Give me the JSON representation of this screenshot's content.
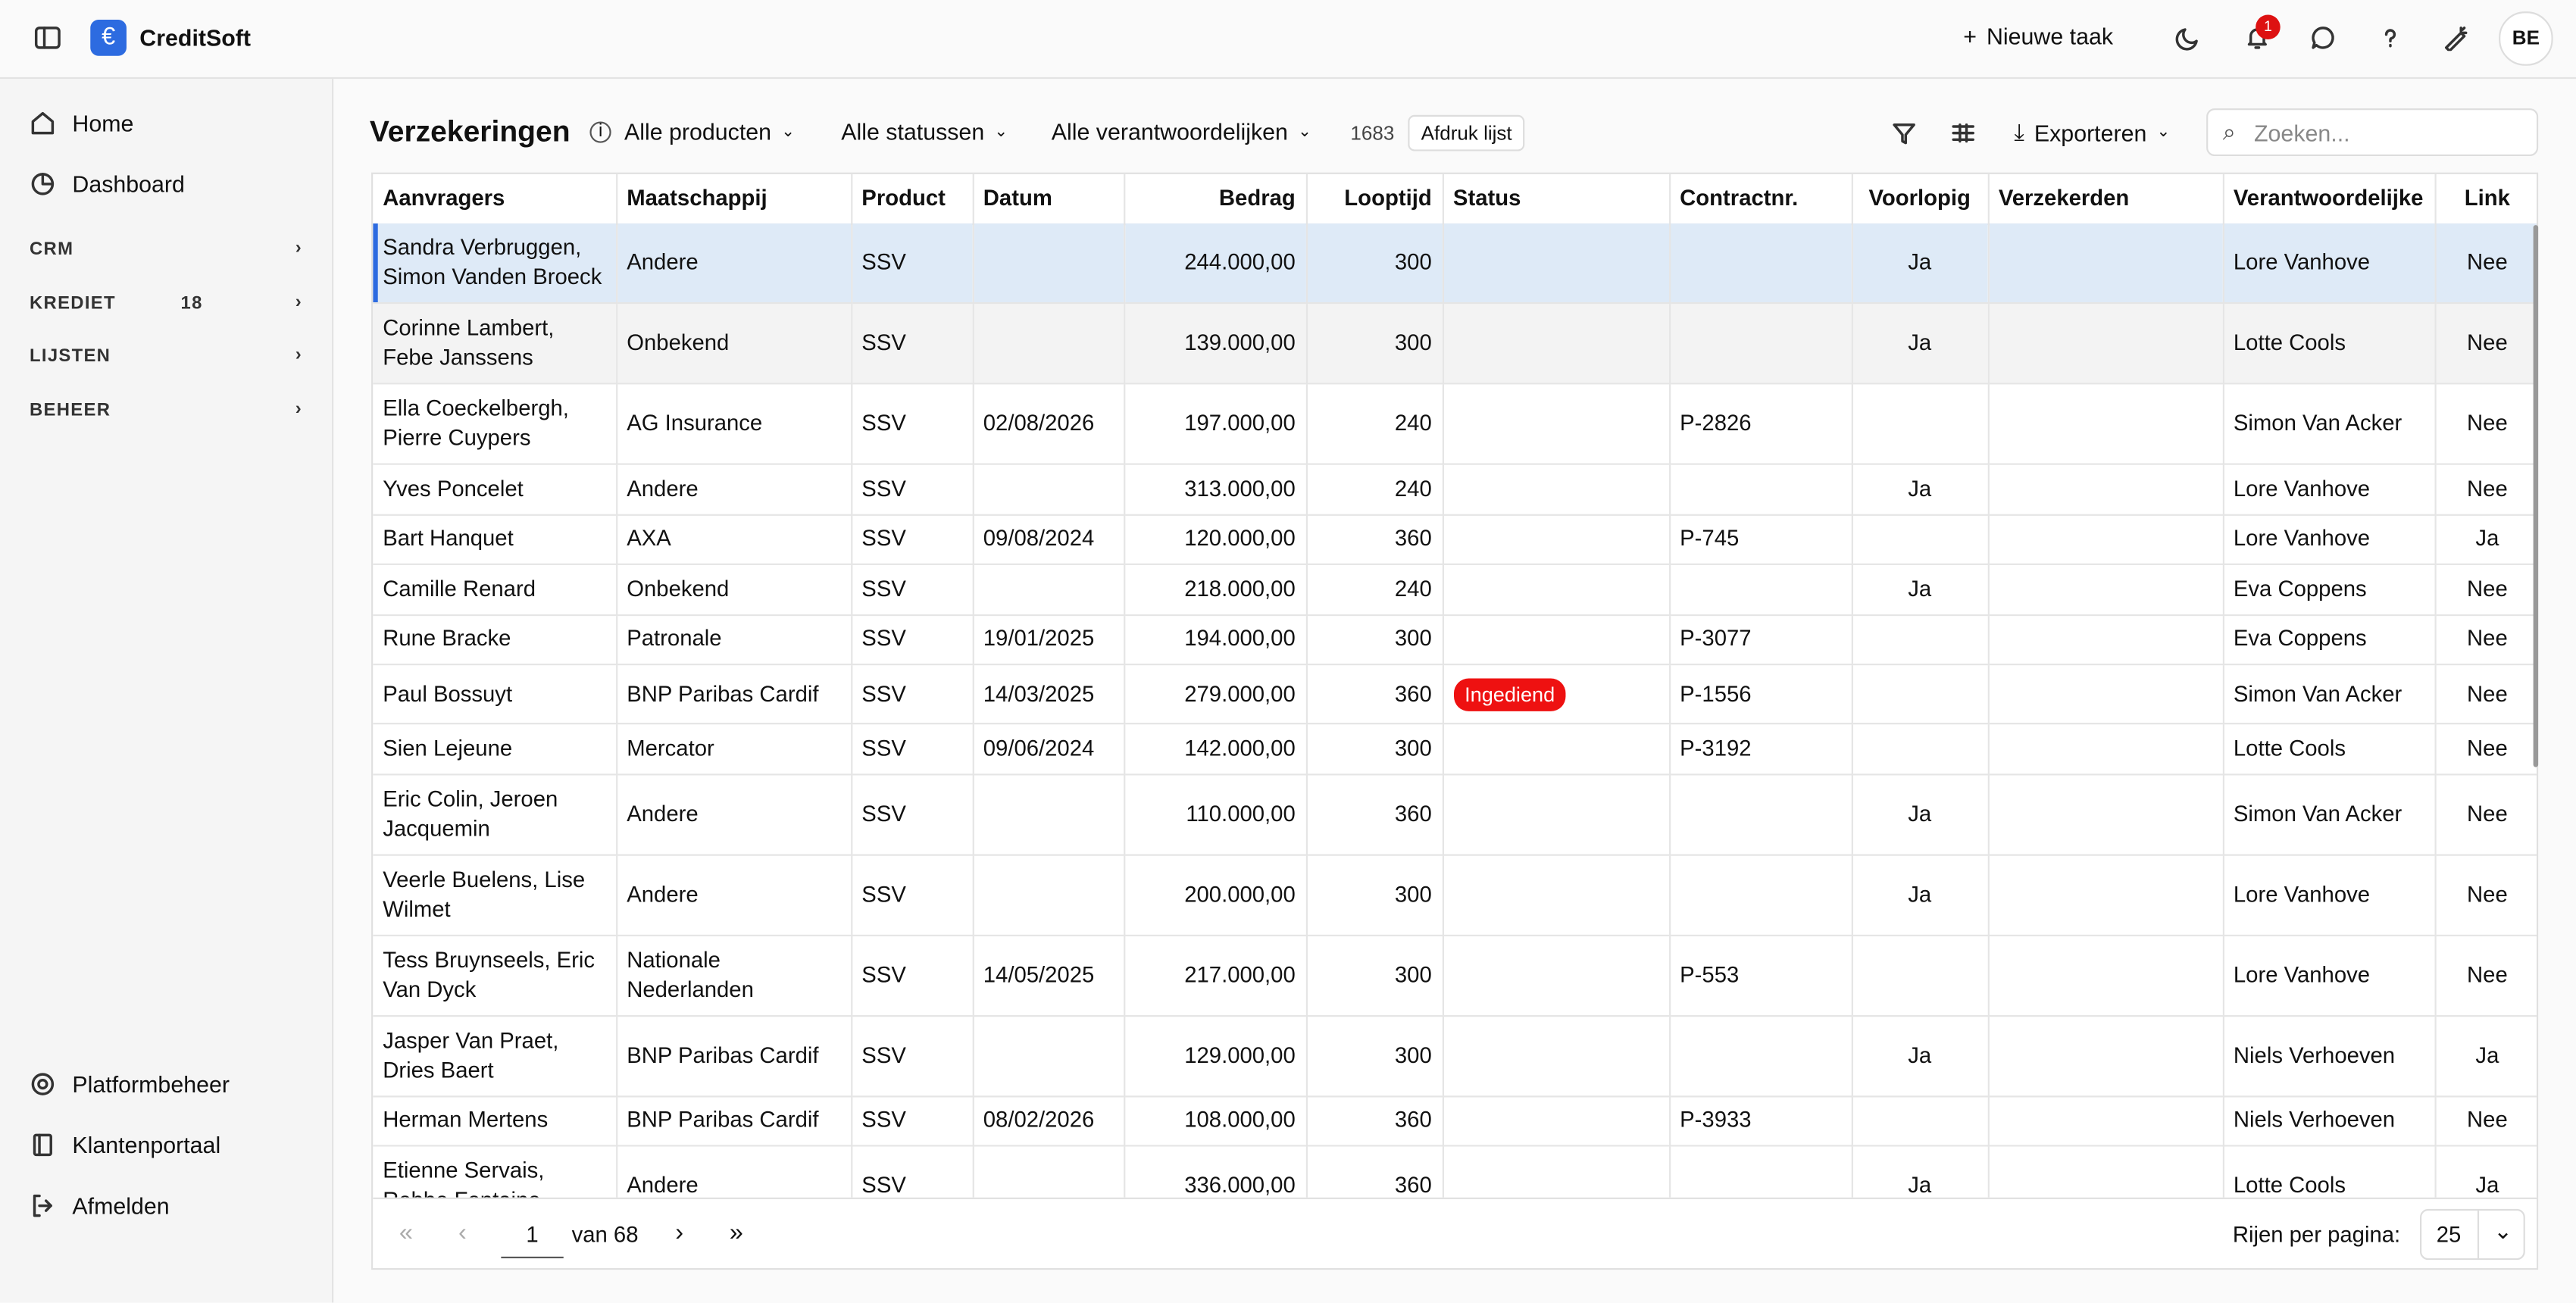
{
  "header": {
    "app_name": "CreditSoft",
    "new_task": "Nieuwe taak",
    "notification_count": 1,
    "user_initials": "BE"
  },
  "sidebar": {
    "nav": [
      "Home",
      "Dashboard"
    ],
    "sections": [
      {
        "label": "CRM"
      },
      {
        "label": "KREDIET",
        "count": 18
      },
      {
        "label": "LIJSTEN"
      },
      {
        "label": "BEHEER"
      }
    ],
    "bottom": [
      "Platformbeheer",
      "Klantenportaal",
      "Afmelden"
    ]
  },
  "toolbar": {
    "title": "Verzekeringen",
    "filters": [
      "Alle producten",
      "Alle statussen",
      "Alle verantwoordelijken"
    ],
    "count": 1683,
    "print": "Afdruk lijst",
    "export": "Exporteren",
    "search_placeholder": "Zoeken..."
  },
  "table": {
    "columns": [
      "Aanvragers",
      "Maatschappij",
      "Product",
      "Datum",
      "Bedrag",
      "Looptijd",
      "Status",
      "Contractnr.",
      "Voorlopig",
      "Verzekerden",
      "Verantwoordelijke",
      "Link"
    ],
    "rows": [
      [
        "Sandra Verbruggen, Simon Vanden Broeck",
        "Andere",
        "SSV",
        null,
        "244.000,00",
        "300",
        null,
        null,
        "Ja",
        null,
        "Lore Vanhove",
        "Nee"
      ],
      [
        "Corinne Lambert, Febe Janssens",
        "Onbekend",
        "SSV",
        null,
        "139.000,00",
        "300",
        null,
        null,
        "Ja",
        null,
        "Lotte Cools",
        "Nee"
      ],
      [
        "Ella Coeckelbergh, Pierre Cuypers",
        "AG Insurance",
        "SSV",
        "02/08/2026",
        "197.000,00",
        "240",
        null,
        "P-2826",
        null,
        null,
        "Simon Van Acker",
        "Nee"
      ],
      [
        "Yves Poncelet",
        "Andere",
        "SSV",
        null,
        "313.000,00",
        "240",
        null,
        null,
        "Ja",
        null,
        "Lore Vanhove",
        "Nee"
      ],
      [
        "Bart Hanquet",
        "AXA",
        "SSV",
        "09/08/2024",
        "120.000,00",
        "360",
        null,
        "P-745",
        null,
        null,
        "Lore Vanhove",
        "Ja"
      ],
      [
        "Camille Renard",
        "Onbekend",
        "SSV",
        null,
        "218.000,00",
        "240",
        null,
        null,
        "Ja",
        null,
        "Eva Coppens",
        "Nee"
      ],
      [
        "Rune Bracke",
        "Patronale",
        "SSV",
        "19/01/2025",
        "194.000,00",
        "300",
        null,
        "P-3077",
        null,
        null,
        "Eva Coppens",
        "Nee"
      ],
      [
        "Paul Bossuyt",
        "BNP Paribas Cardif",
        "SSV",
        "14/03/2025",
        "279.000,00",
        "360",
        "Ingediend",
        "P-1556",
        null,
        null,
        "Simon Van Acker",
        "Nee"
      ],
      [
        "Sien Lejeune",
        "Mercator",
        "SSV",
        "09/06/2024",
        "142.000,00",
        "300",
        null,
        "P-3192",
        null,
        null,
        "Lotte Cools",
        "Nee"
      ],
      [
        "Eric Colin, Jeroen Jacquemin",
        "Andere",
        "SSV",
        null,
        "110.000,00",
        "360",
        null,
        null,
        "Ja",
        null,
        "Simon Van Acker",
        "Nee"
      ],
      [
        "Veerle Buelens, Lise Wilmet",
        "Andere",
        "SSV",
        null,
        "200.000,00",
        "300",
        null,
        null,
        "Ja",
        null,
        "Lore Vanhove",
        "Nee"
      ],
      [
        "Tess Bruynseels, Eric Van Dyck",
        "Nationale Nederlanden",
        "SSV",
        "14/05/2025",
        "217.000,00",
        "300",
        null,
        "P-553",
        null,
        null,
        "Lore Vanhove",
        "Nee"
      ],
      [
        "Jasper Van Praet, Dries Baert",
        "BNP Paribas Cardif",
        "SSV",
        null,
        "129.000,00",
        "300",
        null,
        null,
        "Ja",
        null,
        "Niels Verhoeven",
        "Ja"
      ],
      [
        "Herman Mertens",
        "BNP Paribas Cardif",
        "SSV",
        "08/02/2026",
        "108.000,00",
        "360",
        null,
        "P-3933",
        null,
        null,
        "Niels Verhoeven",
        "Nee"
      ],
      [
        "Etienne Servais, Robbe Fontaine",
        "Andere",
        "SSV",
        null,
        "336.000,00",
        "360",
        null,
        null,
        "Ja",
        null,
        "Lotte Cools",
        "Ja"
      ]
    ]
  },
  "pagination": {
    "page": 1,
    "of": "van 68",
    "rows_label": "Rijen per pagina:",
    "rows_per_page": 25
  }
}
